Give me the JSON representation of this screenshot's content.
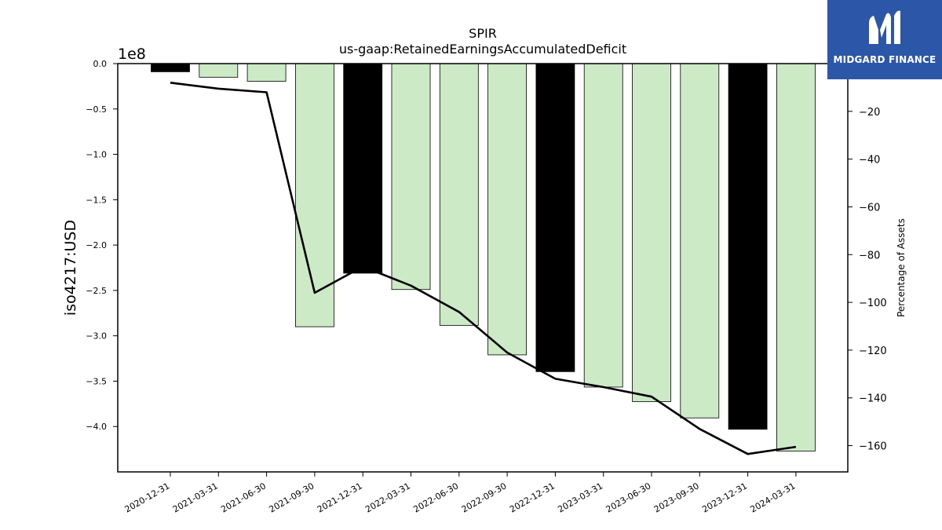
{
  "chart_data": {
    "type": "bar",
    "title": "SPIR",
    "subtitle": "us-gaap:RetainedEarningsAccumulatedDeficit",
    "ylabel": "iso4217:USD",
    "y2label": "Percentage of Assets",
    "y_multiplier_label": "1e8",
    "categories": [
      "2020-12-31",
      "2021-03-31",
      "2021-06-30",
      "2021-09-30",
      "2021-12-31",
      "2022-03-31",
      "2022-06-30",
      "2022-09-30",
      "2022-12-31",
      "2023-03-31",
      "2023-06-30",
      "2023-09-30",
      "2023-12-31",
      "2024-03-31"
    ],
    "values": [
      -9000000,
      -15000000,
      -19500000,
      -290000000,
      -231000000,
      -249000000,
      -288500000,
      -321000000,
      -339500000,
      -356500000,
      -372500000,
      -390500000,
      -403000000,
      -427000000
    ],
    "bar_colors": [
      "#000000",
      "#cdeac7",
      "#cdeac7",
      "#cdeac7",
      "#000000",
      "#cdeac7",
      "#cdeac7",
      "#cdeac7",
      "#000000",
      "#cdeac7",
      "#cdeac7",
      "#cdeac7",
      "#000000",
      "#cdeac7"
    ],
    "ylim": [
      -450000000,
      0
    ],
    "yticks": [
      0.0,
      -0.5,
      -1.0,
      -1.5,
      -2.0,
      -2.5,
      -3.0,
      -3.5,
      -4.0
    ],
    "line": {
      "name": "Percentage of Assets",
      "values": [
        -8,
        -10.5,
        -12,
        -96,
        -85,
        -93,
        -104,
        -121,
        -132,
        -135.5,
        -139.5,
        -153,
        -163.5,
        -160.5
      ],
      "ylim": [
        -171,
        0
      ],
      "yticks": [
        -20,
        -40,
        -60,
        -80,
        -100,
        -120,
        -140,
        -160
      ]
    }
  },
  "logo": {
    "text": "MIDGARD FINANCE"
  },
  "colors": {
    "accent_bar": "#000000",
    "regular_bar": "#cdeac7",
    "logo_bg": "#2c57a8"
  }
}
